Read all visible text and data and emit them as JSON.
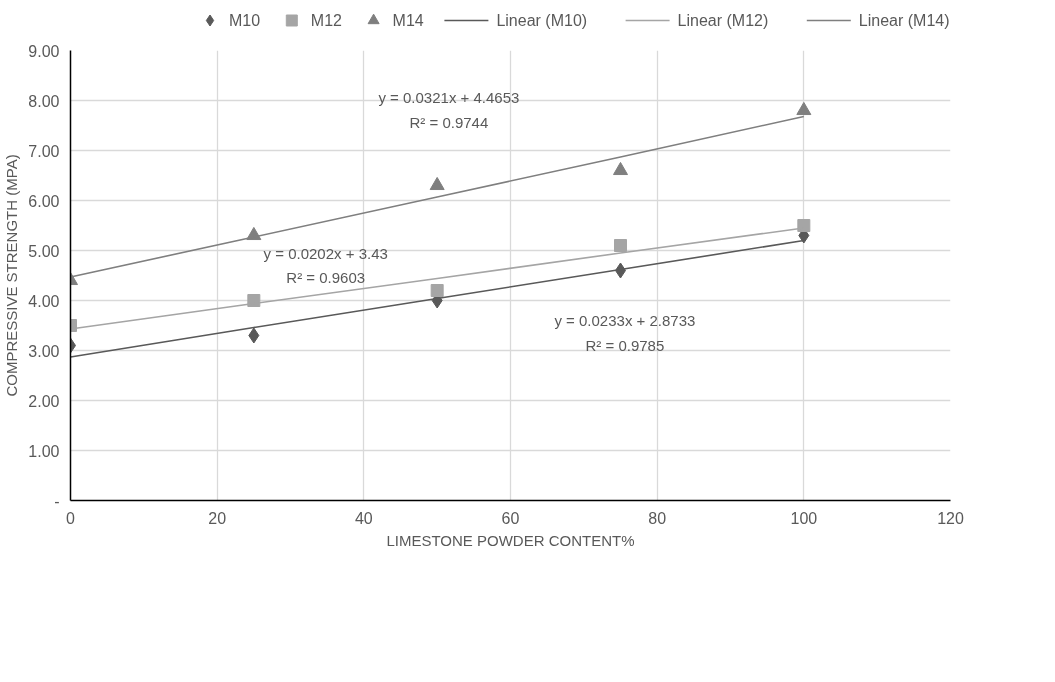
{
  "chart_data": {
    "type": "scatter",
    "xlabel": "LIMESTONE POWDER CONTENT%",
    "ylabel": "COMPRESSIVE STRENGTH (MPA)",
    "x": [
      0,
      25,
      50,
      75,
      100
    ],
    "series": [
      {
        "name": "M10",
        "color": "#595959",
        "marker": "diamond",
        "values": [
          3.1,
          3.3,
          4.0,
          4.6,
          5.3
        ]
      },
      {
        "name": "M12",
        "color": "#a5a5a5",
        "marker": "square",
        "values": [
          3.5,
          4.0,
          4.2,
          5.1,
          5.5
        ]
      },
      {
        "name": "M14",
        "color": "#7f7f7f",
        "marker": "triangle",
        "values": [
          4.4,
          5.3,
          6.3,
          6.6,
          7.8
        ]
      },
      {
        "name": "Linear (M10)",
        "type": "line",
        "color": "#595959",
        "line_style": "solid",
        "values": [
          2.87,
          3.46,
          4.04,
          4.62,
          5.2
        ]
      },
      {
        "name": "Linear (M12)",
        "type": "line",
        "color": "#a5a5a5",
        "line_style": "solid",
        "values": [
          3.43,
          3.94,
          4.44,
          4.95,
          5.45
        ]
      },
      {
        "name": "Linear (M14)",
        "type": "line",
        "color": "#7f7f7f",
        "line_style": "solid",
        "values": [
          4.47,
          5.27,
          6.07,
          6.87,
          7.68
        ]
      }
    ],
    "annotations": [
      "y = 0.0321x + 4.4653",
      "R² = 0.9744",
      "y = 0.0202x + 3.43",
      "R² = 0.9603",
      "y = 0.0233x + 2.8733",
      "R² = 0.9785"
    ],
    "xlim": [
      0,
      120
    ],
    "xticks": [
      0,
      20,
      40,
      60,
      80,
      100,
      120
    ],
    "ylim": [
      0,
      9
    ],
    "yticks": [
      {
        "value": 0,
        "label": "-"
      },
      {
        "value": 1,
        "label": "1.00"
      },
      {
        "value": 2,
        "label": "2.00"
      },
      {
        "value": 3,
        "label": "3.00"
      },
      {
        "value": 4,
        "label": "4.00"
      },
      {
        "value": 5,
        "label": "5.00"
      },
      {
        "value": 6,
        "label": "6.00"
      },
      {
        "value": 7,
        "label": "7.00"
      },
      {
        "value": 8,
        "label": "8.00"
      },
      {
        "value": 9,
        "label": "9.00"
      }
    ],
    "grid": true,
    "legend": "top"
  }
}
